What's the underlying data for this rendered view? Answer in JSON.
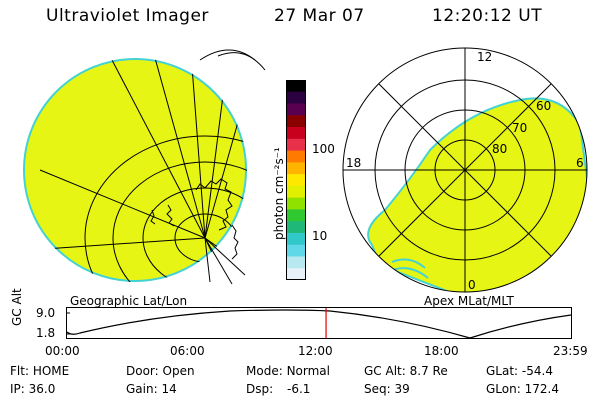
{
  "header": {
    "instrument": "Ultraviolet Imager",
    "date": "27 Mar 07",
    "time": "12:20:12 UT"
  },
  "colorbar": {
    "label": "photon cm⁻²s⁻¹",
    "ticks": [
      "100",
      "10"
    ],
    "colors": [
      "#000000",
      "#2a0040",
      "#5a0050",
      "#8a0000",
      "#c8001e",
      "#e8304a",
      "#ff7a00",
      "#ffb400",
      "#ffe800",
      "#e0f000",
      "#90e000",
      "#30c830",
      "#20b878",
      "#30c8c8",
      "#60d8e8",
      "#b8e8f0",
      "#e8f0f8"
    ]
  },
  "left_map": {
    "caption": "Geographic Lat/Lon",
    "fill_color": "#e6f514",
    "edge_color": "#44d2d2"
  },
  "right_map": {
    "caption": "Apex MLat/MLT",
    "mlt_labels": {
      "top": "12",
      "left": "18",
      "right": "6",
      "bottom": "0"
    },
    "ring_labels": [
      "60",
      "70",
      "80"
    ],
    "fill_color": "#e6f514"
  },
  "altitude_plot": {
    "ylabel": "GC Alt",
    "yticks": [
      "9.0",
      "1.8"
    ],
    "xticks": [
      "00:00",
      "06:00",
      "12:00",
      "18:00",
      "23:59"
    ],
    "marker_time_fraction": 0.514,
    "marker_color": "#e00000"
  },
  "status": {
    "flt_label": "Flt:",
    "flt_value": "HOME",
    "ip_label": "IP:",
    "ip_value": "36.0",
    "door_label": "Door:",
    "door_value": "Open",
    "gain_label": "Gain:",
    "gain_value": "14",
    "mode_label": "Mode:",
    "mode_value": "Normal",
    "dsp_label": "Dsp:",
    "dsp_value": "-6.1",
    "gcalt_label": "GC Alt:",
    "gcalt_value": "8.7 Re",
    "seq_label": "Seq:",
    "seq_value": "39",
    "glat_label": "GLat:",
    "glat_value": "-54.4",
    "glon_label": "GLon:",
    "glon_value": "172.4"
  }
}
